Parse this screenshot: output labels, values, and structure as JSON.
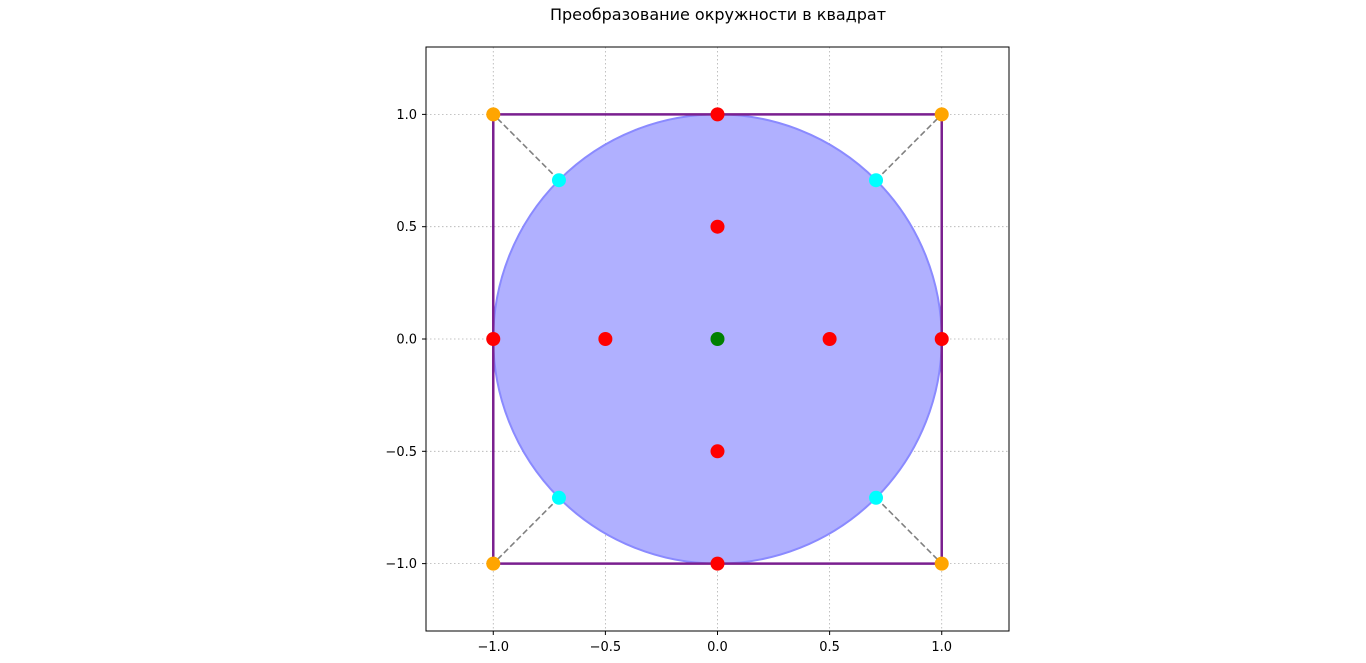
{
  "chart_data": {
    "type": "scatter",
    "title": "Преобразование окружности в квадрат",
    "xlabel": "",
    "ylabel": "",
    "xlim": [
      -1.3,
      1.3
    ],
    "ylim": [
      -1.3,
      1.3
    ],
    "grid": true,
    "aspect": "equal",
    "xticks": [
      -1.0,
      -0.5,
      0.0,
      0.5,
      1.0
    ],
    "yticks": [
      -1.0,
      -0.5,
      0.0,
      0.5,
      1.0
    ],
    "xtick_labels": [
      "−1.0",
      "−0.5",
      "0.0",
      "0.5",
      "1.0"
    ],
    "ytick_labels": [
      "−1.0",
      "−0.5",
      "0.0",
      "0.5",
      "1.0"
    ],
    "circle": {
      "center": [
        0,
        0
      ],
      "radius": 1.0,
      "fill": "#b0b0ff",
      "edge": "#8a8aff"
    },
    "square": {
      "xmin": -1,
      "xmax": 1,
      "ymin": -1,
      "ymax": 1,
      "color": "#7a1f8f"
    },
    "connectors": {
      "color": "#808080",
      "style": "dashed",
      "segments": [
        {
          "from": [
            -0.707,
            0.707
          ],
          "to": [
            -1,
            1
          ]
        },
        {
          "from": [
            0.707,
            0.707
          ],
          "to": [
            1,
            1
          ]
        },
        {
          "from": [
            -0.707,
            -0.707
          ],
          "to": [
            -1,
            -1
          ]
        },
        {
          "from": [
            0.707,
            -0.707
          ],
          "to": [
            1,
            -1
          ]
        }
      ]
    },
    "series": [
      {
        "color": "#ff0000",
        "points": [
          [
            0,
            1
          ],
          [
            0,
            0.5
          ],
          [
            -1,
            0
          ],
          [
            -0.5,
            0
          ],
          [
            0.5,
            0
          ],
          [
            1,
            0
          ],
          [
            0,
            -0.5
          ],
          [
            0,
            -1
          ]
        ]
      },
      {
        "color": "#008000",
        "points": [
          [
            0,
            0
          ]
        ]
      },
      {
        "color": "#00ffff",
        "points": [
          [
            -0.707,
            0.707
          ],
          [
            0.707,
            0.707
          ],
          [
            -0.707,
            -0.707
          ],
          [
            0.707,
            -0.707
          ]
        ]
      },
      {
        "color": "#ffa500",
        "points": [
          [
            -1,
            1
          ],
          [
            1,
            1
          ],
          [
            -1,
            -1
          ],
          [
            1,
            -1
          ]
        ]
      }
    ]
  }
}
